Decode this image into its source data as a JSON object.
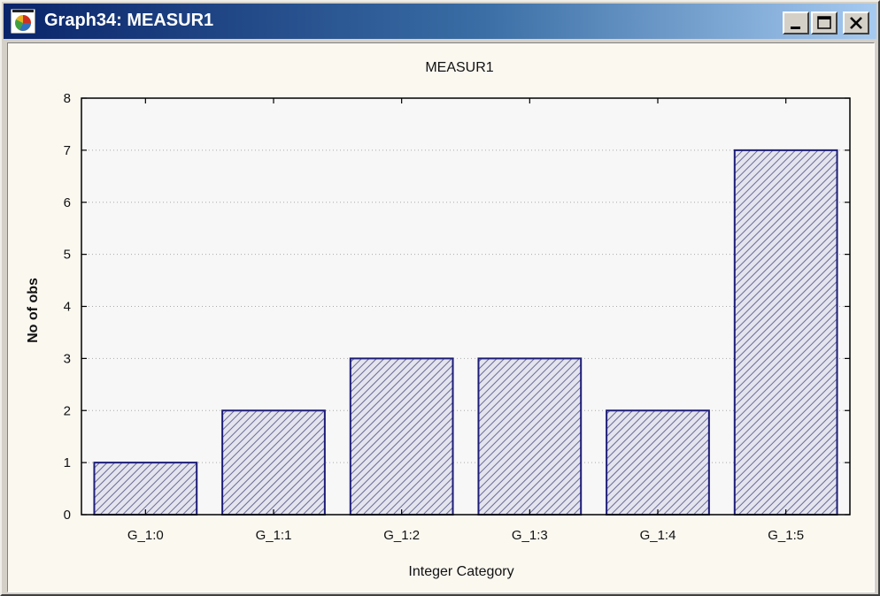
{
  "window": {
    "title": "Graph34:  MEASUR1",
    "controls": [
      "minimize",
      "maximize",
      "close"
    ],
    "icon": "graph-app-icon"
  },
  "colors": {
    "bar_stroke": "#1c1c78",
    "bar_hatch": "#6a6a96",
    "bar_fill": "#e4e4ee",
    "plot_bg": "#f7f7f7",
    "grid": "#aaaaaa"
  },
  "chart_data": {
    "type": "bar",
    "title": "MEASUR1",
    "xlabel": "Integer Category",
    "ylabel": "No of obs",
    "categories": [
      "G_1:0",
      "G_1:1",
      "G_1:2",
      "G_1:3",
      "G_1:4",
      "G_1:5"
    ],
    "values": [
      1,
      2,
      3,
      3,
      2,
      7
    ],
    "ylim": [
      0,
      8
    ],
    "yticks": [
      0,
      1,
      2,
      3,
      4,
      5,
      6,
      7,
      8
    ],
    "grid": "horizontal dotted",
    "pattern": "diagonal hatch"
  }
}
